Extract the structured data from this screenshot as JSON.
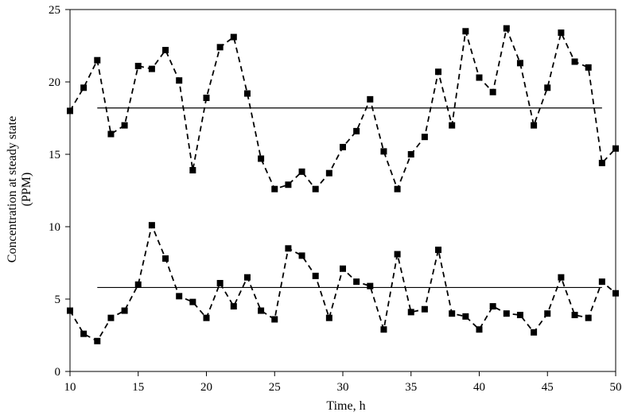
{
  "chart_data": {
    "type": "line",
    "xlabel": "Time,  h",
    "ylabel_line1": "Concentration  at  steady  state",
    "ylabel_line2": "(PPM)",
    "xlim": [
      10,
      50
    ],
    "ylim": [
      0,
      25
    ],
    "xticks": [
      10,
      15,
      20,
      25,
      30,
      35,
      40,
      45,
      50
    ],
    "yticks": [
      0,
      5,
      10,
      15,
      20,
      25
    ],
    "grid": false,
    "legend": "none",
    "marker": "square",
    "line_style": "dashed",
    "color": "#000000",
    "series": [
      {
        "x": [
          10,
          11,
          12,
          13,
          14,
          15,
          16,
          17,
          18,
          19,
          20,
          21,
          22,
          23,
          24,
          25,
          26,
          27,
          28,
          29,
          30,
          31,
          32,
          33,
          34,
          35,
          36,
          37,
          38,
          39,
          40,
          41,
          42,
          43,
          44,
          45,
          46,
          47,
          48,
          49,
          50
        ],
        "values": [
          18.0,
          19.6,
          21.5,
          16.4,
          17.0,
          21.1,
          20.9,
          22.2,
          20.1,
          13.9,
          18.9,
          22.4,
          23.1,
          19.2,
          14.7,
          12.6,
          12.9,
          13.8,
          12.6,
          13.7,
          15.5,
          16.6,
          18.8,
          15.2,
          12.6,
          15.0,
          16.2,
          20.7,
          17.0,
          23.5,
          20.3,
          19.3,
          23.7,
          21.3,
          17.0,
          19.6,
          23.4,
          21.4,
          21.0,
          14.4,
          15.4
        ]
      },
      {
        "x": [
          10,
          11,
          12,
          13,
          14,
          15,
          16,
          17,
          18,
          19,
          20,
          21,
          22,
          23,
          24,
          25,
          26,
          27,
          28,
          29,
          30,
          31,
          32,
          33,
          34,
          35,
          36,
          37,
          38,
          39,
          40,
          41,
          42,
          43,
          44,
          45,
          46,
          47,
          48,
          49,
          50
        ],
        "values": [
          4.2,
          2.6,
          2.1,
          3.7,
          4.2,
          6.0,
          10.1,
          7.8,
          5.2,
          4.8,
          3.7,
          6.1,
          4.5,
          6.5,
          4.2,
          3.6,
          8.5,
          8.0,
          6.6,
          3.7,
          7.1,
          6.2,
          5.9,
          2.9,
          8.1,
          4.1,
          4.3,
          8.4,
          4.0,
          3.8,
          2.9,
          4.5,
          4.0,
          3.9,
          2.7,
          4.0,
          6.5,
          3.9,
          3.7,
          6.2,
          5.4
        ]
      }
    ],
    "reference_lines": [
      {
        "y": 18.2,
        "x_from": 12,
        "x_to": 49
      },
      {
        "y": 5.8,
        "x_from": 12,
        "x_to": 49
      }
    ]
  }
}
